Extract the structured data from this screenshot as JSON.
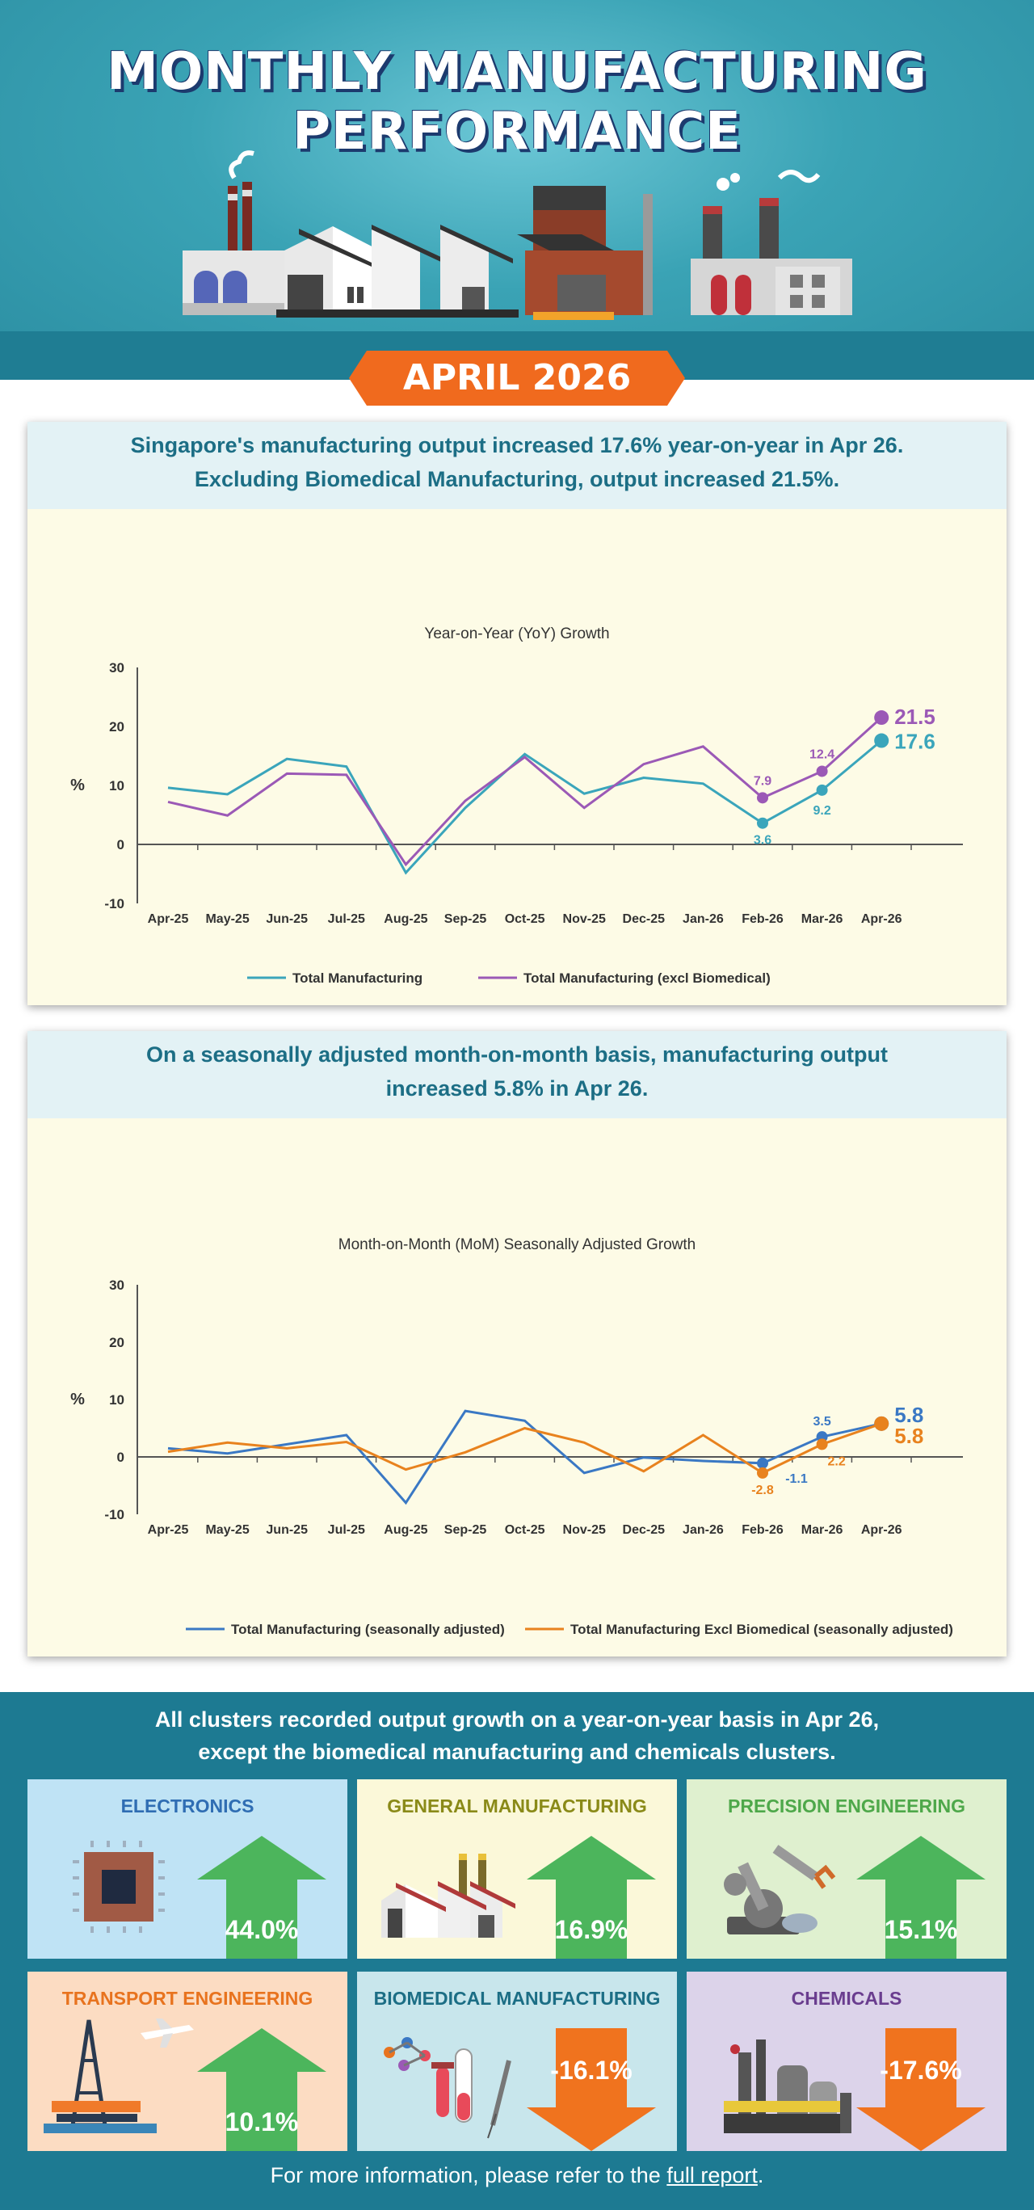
{
  "header": {
    "title_line1": "MONTHLY MANUFACTURING",
    "title_line2": "PERFORMANCE",
    "month": "APRIL 2026"
  },
  "colors": {
    "teal_total": "#3aa5bb",
    "purple_excl": "#9b59b6",
    "blue_sa": "#3a78c4",
    "orange_sa": "#e8821e",
    "up_arrow": "#4cb55c",
    "down_arrow": "#f0731e"
  },
  "yoy": {
    "headline_line1": "Singapore's manufacturing output increased 17.6% year-on-year in Apr 26.",
    "headline_line2": "Excluding Biomedical Manufacturing, output increased 21.5%."
  },
  "mom": {
    "headline_line1": "On a seasonally adjusted month-on-month basis, manufacturing output",
    "headline_line2": "increased 5.8% in Apr 26."
  },
  "chart_data": [
    {
      "type": "line",
      "title": "Year-on-Year (YoY) Growth",
      "ylabel": "%",
      "ylim": [
        -10,
        30
      ],
      "yticks": [
        "30",
        "20",
        "10",
        "0",
        "-10"
      ],
      "categories": [
        "Apr-25",
        "May-25",
        "Jun-25",
        "Jul-25",
        "Aug-25",
        "Sep-25",
        "Oct-25",
        "Nov-25",
        "Dec-25",
        "Jan-26",
        "Feb-26",
        "Mar-26",
        "Apr-26"
      ],
      "legend_position": "bottom",
      "series": [
        {
          "name": "Total Manufacturing",
          "color": "#3aa5bb",
          "values": [
            9.6,
            8.5,
            14.5,
            13.2,
            -4.8,
            6.2,
            15.3,
            8.6,
            11.3,
            10.3,
            3.6,
            9.2,
            17.6
          ],
          "labels": {
            "10": "3.6",
            "11": "9.2",
            "12": "17.6"
          }
        },
        {
          "name": "Total Manufacturing (excl Biomedical)",
          "color": "#9b59b6",
          "values": [
            7.2,
            4.9,
            12.0,
            11.8,
            -3.4,
            7.4,
            14.8,
            6.2,
            13.6,
            16.6,
            7.9,
            12.4,
            21.5
          ],
          "labels": {
            "10": "7.9",
            "11": "12.4",
            "12": "21.5"
          }
        }
      ]
    },
    {
      "type": "line",
      "title": "Month-on-Month (MoM) Seasonally Adjusted Growth",
      "ylabel": "%",
      "ylim": [
        -10,
        30
      ],
      "yticks": [
        "30",
        "20",
        "10",
        "0",
        "-10"
      ],
      "categories": [
        "Apr-25",
        "May-25",
        "Jun-25",
        "Jul-25",
        "Aug-25",
        "Sep-25",
        "Oct-25",
        "Nov-25",
        "Dec-25",
        "Jan-26",
        "Feb-26",
        "Mar-26",
        "Apr-26"
      ],
      "legend_position": "bottom",
      "series": [
        {
          "name": "Total Manufacturing (seasonally adjusted)",
          "color": "#3a78c4",
          "values": [
            1.5,
            0.6,
            2.2,
            3.8,
            -8.0,
            8.0,
            6.3,
            -2.8,
            -0.1,
            -0.7,
            -1.1,
            3.5,
            5.8
          ],
          "labels": {
            "10": "-1.1",
            "11": "3.5",
            "12": "5.8"
          }
        },
        {
          "name": "Total Manufacturing Excl Biomedical (seasonally adjusted)",
          "color": "#e8821e",
          "values": [
            0.9,
            2.5,
            1.5,
            2.6,
            -2.2,
            0.8,
            5.0,
            2.5,
            -2.5,
            3.8,
            -2.8,
            2.2,
            5.8
          ],
          "labels": {
            "10": "-2.8",
            "11": "2.2",
            "12": "5.8"
          }
        }
      ]
    }
  ],
  "clusters": {
    "headline_line1": "All clusters recorded output growth on a year-on-year basis in Apr 26,",
    "headline_line2": "except the biomedical manufacturing and chemicals clusters.",
    "items": [
      {
        "name": "ELECTRONICS",
        "value": "44.0%",
        "direction": "up",
        "icon": "chip-icon",
        "bg": "#bfe3f5",
        "name_color": "#2f6db3"
      },
      {
        "name": "GENERAL MANUFACTURING",
        "value": "16.9%",
        "direction": "up",
        "icon": "factory-icon",
        "bg": "#fbf8d9",
        "name_color": "#8a8a18"
      },
      {
        "name": "PRECISION ENGINEERING",
        "value": "15.1%",
        "direction": "up",
        "icon": "robot-arm-icon",
        "bg": "#dff0cf",
        "name_color": "#4ea84a"
      },
      {
        "name": "TRANSPORT ENGINEERING",
        "value": "10.1%",
        "direction": "up",
        "icon": "oil-rig-airplane-icon",
        "bg": "#fcdcc2",
        "name_color": "#e8731e"
      },
      {
        "name": "BIOMEDICAL MANUFACTURING",
        "value": "-16.1%",
        "direction": "down",
        "icon": "lab-syringe-icon",
        "bg": "#c8e6ec",
        "name_color": "#1c6e85"
      },
      {
        "name": "CHEMICALS",
        "value": "-17.6%",
        "direction": "down",
        "icon": "chemical-plant-icon",
        "bg": "#dcd3ea",
        "name_color": "#6a3d8f"
      }
    ]
  },
  "footer": {
    "text_before": "For more information, please refer to the ",
    "link_text": "full report",
    "text_after": "."
  }
}
